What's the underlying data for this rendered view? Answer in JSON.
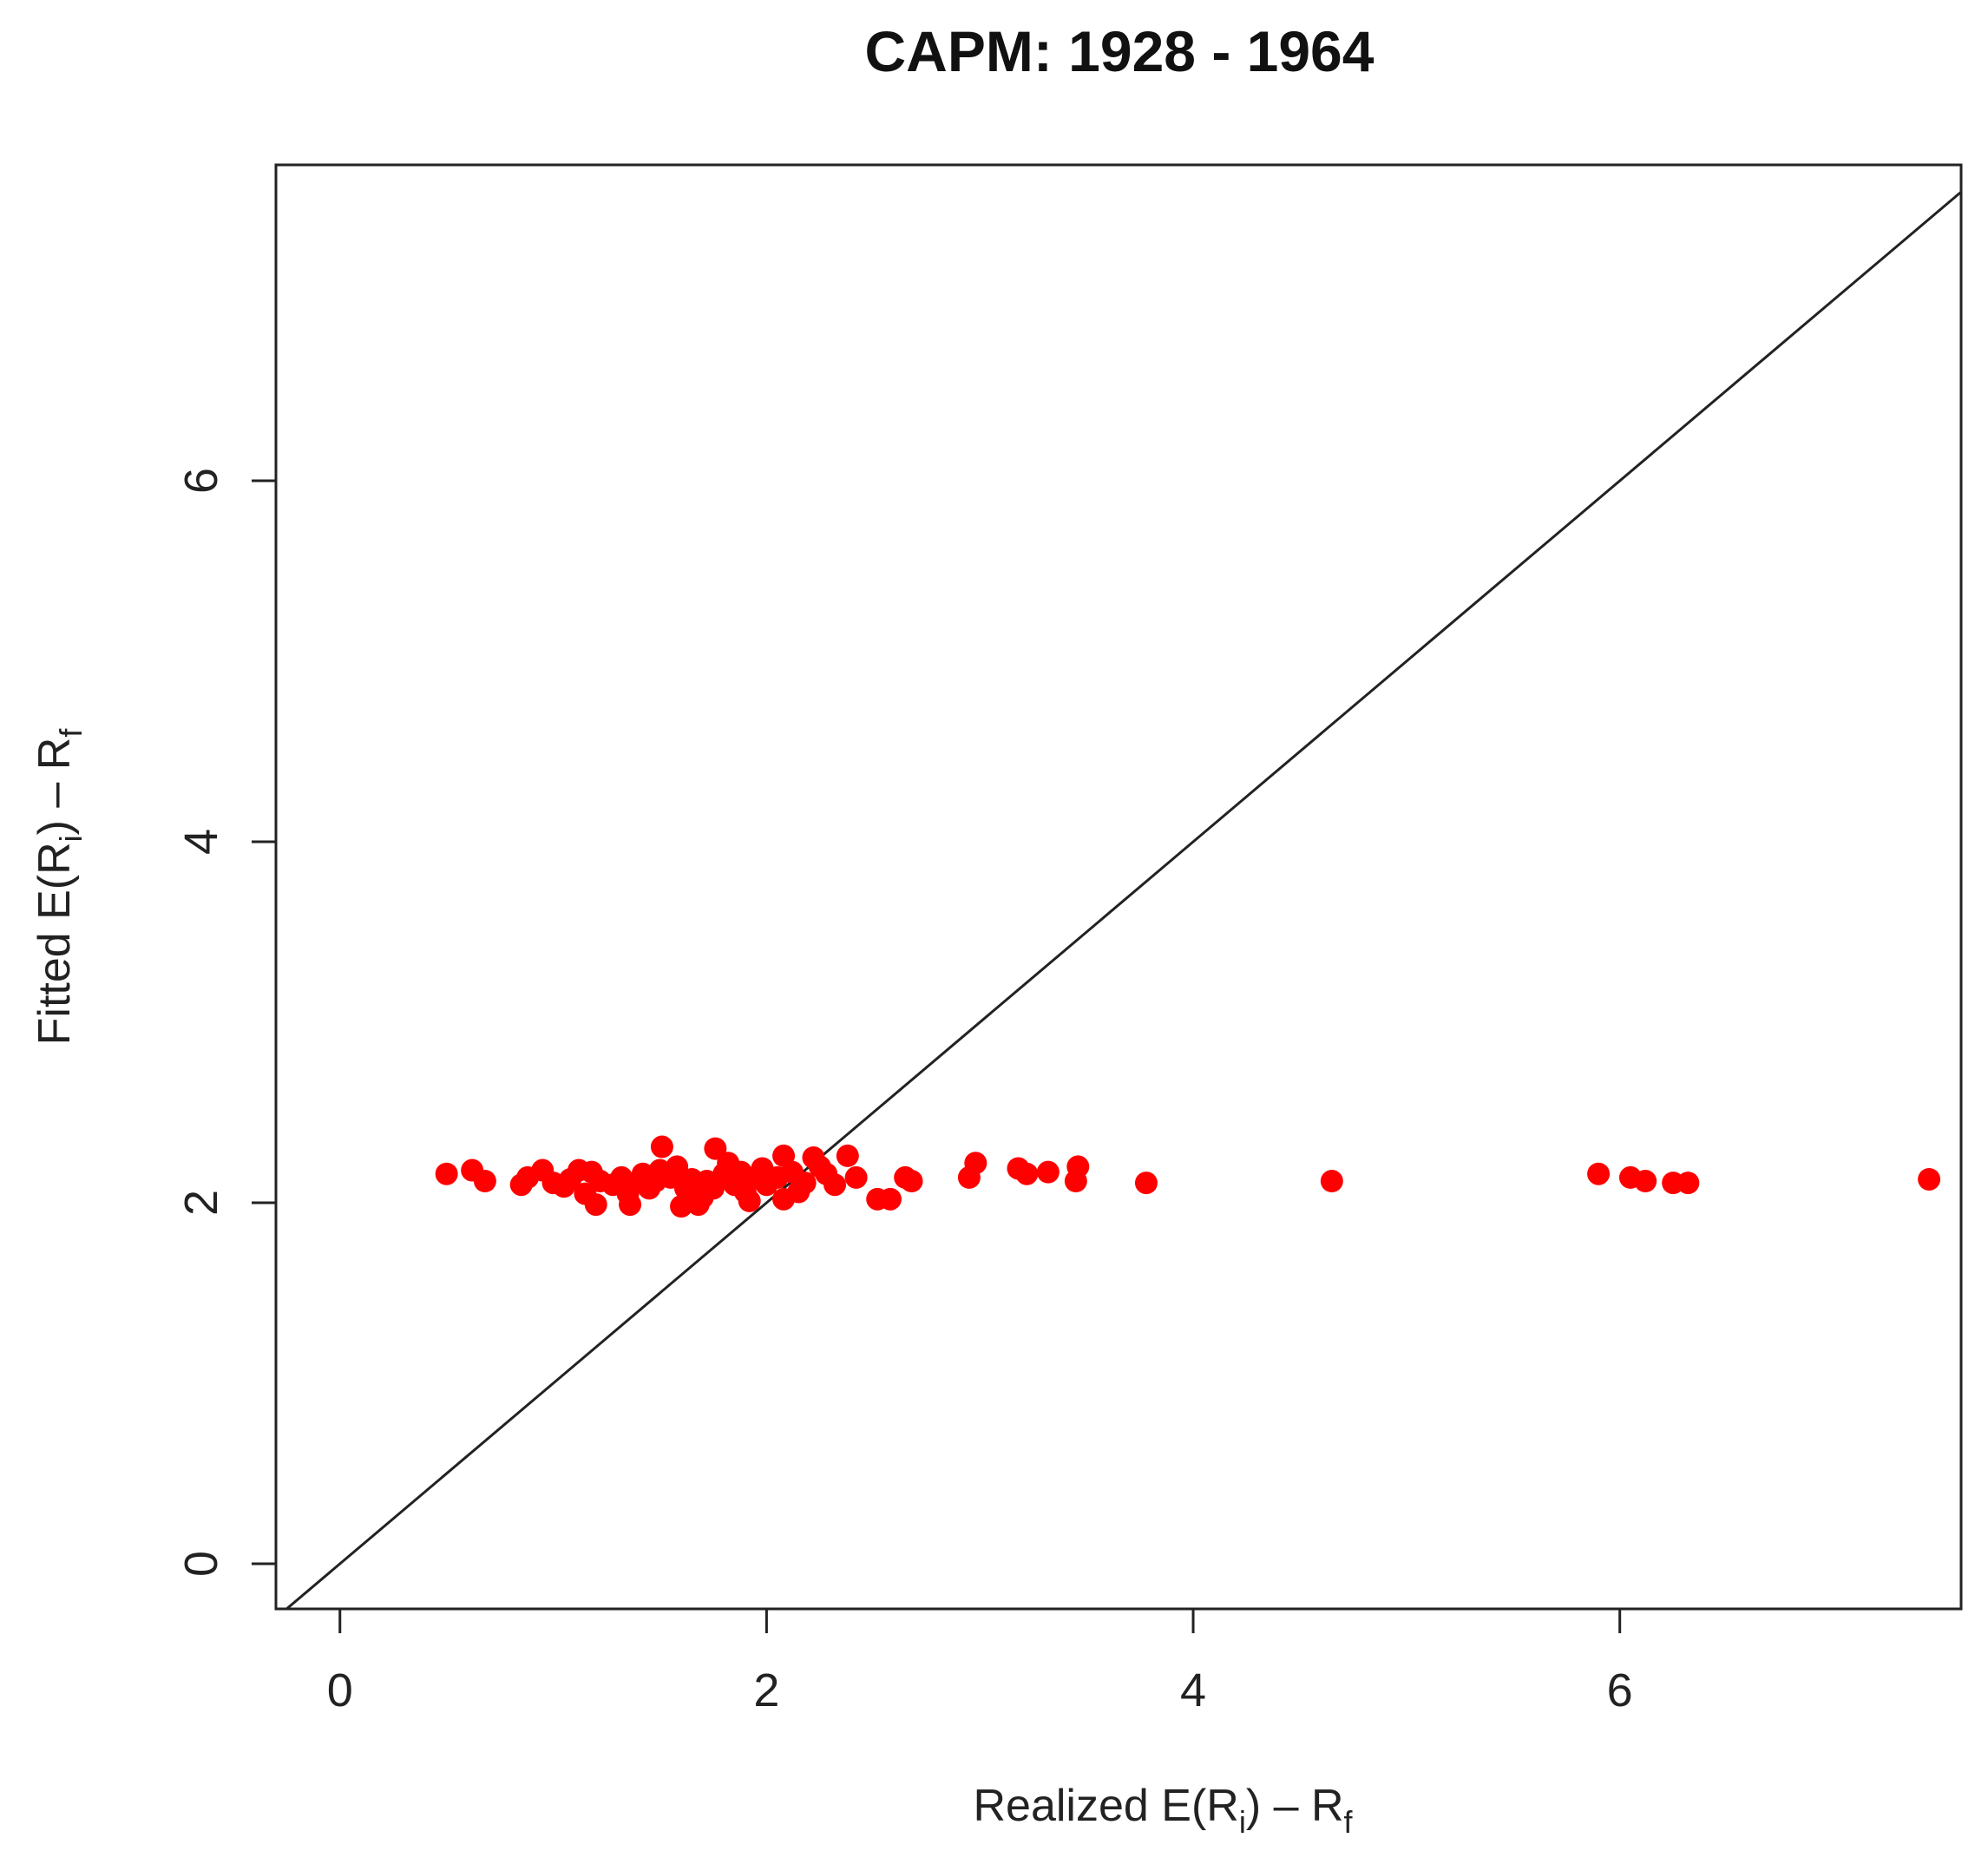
{
  "chart_data": {
    "type": "scatter",
    "title": "CAPM: 1928 - 1964",
    "xlabel": {
      "main": "Realized E(R",
      "sub": "i",
      "tail": ") – R",
      "sub2": "f"
    },
    "ylabel": {
      "main": "Fitted E(R",
      "sub": "i",
      "tail": ") – R",
      "sub2": "f"
    },
    "xlim": [
      -0.3,
      7.6
    ],
    "ylim": [
      -0.25,
      7.75
    ],
    "xticks": [
      "0",
      "2",
      "4",
      "6"
    ],
    "yticks": [
      "0",
      "2",
      "4",
      "6"
    ],
    "grid": false,
    "point_color": "#ff0000",
    "line_color": "#222222",
    "reference_line": {
      "slope": 1,
      "intercept": 0
    },
    "points": [
      [
        0.5,
        2.16
      ],
      [
        0.62,
        2.18
      ],
      [
        0.68,
        2.12
      ],
      [
        0.85,
        2.1
      ],
      [
        0.88,
        2.14
      ],
      [
        0.95,
        2.18
      ],
      [
        1.0,
        2.11
      ],
      [
        1.05,
        2.09
      ],
      [
        1.08,
        2.13
      ],
      [
        1.12,
        2.18
      ],
      [
        1.15,
        2.05
      ],
      [
        1.18,
        2.17
      ],
      [
        1.2,
        1.99
      ],
      [
        1.22,
        2.12
      ],
      [
        1.28,
        2.1
      ],
      [
        1.32,
        2.14
      ],
      [
        1.35,
        2.05
      ],
      [
        1.36,
        1.99
      ],
      [
        1.4,
        2.12
      ],
      [
        1.42,
        2.16
      ],
      [
        1.45,
        2.08
      ],
      [
        1.48,
        2.12
      ],
      [
        1.5,
        2.18
      ],
      [
        1.51,
        2.31
      ],
      [
        1.55,
        2.14
      ],
      [
        1.58,
        2.2
      ],
      [
        1.6,
        1.98
      ],
      [
        1.62,
        2.08
      ],
      [
        1.65,
        2.13
      ],
      [
        1.68,
        1.99
      ],
      [
        1.7,
        2.03
      ],
      [
        1.72,
        2.12
      ],
      [
        1.75,
        2.08
      ],
      [
        1.76,
        2.3
      ],
      [
        1.8,
        2.16
      ],
      [
        1.82,
        2.22
      ],
      [
        1.85,
        2.1
      ],
      [
        1.88,
        2.17
      ],
      [
        1.9,
        2.06
      ],
      [
        1.92,
        2.01
      ],
      [
        1.95,
        2.14
      ],
      [
        1.98,
        2.19
      ],
      [
        2.0,
        2.1
      ],
      [
        2.05,
        2.14
      ],
      [
        2.08,
        2.02
      ],
      [
        2.08,
        2.26
      ],
      [
        2.12,
        2.17
      ],
      [
        2.15,
        2.06
      ],
      [
        2.18,
        2.11
      ],
      [
        2.22,
        2.25
      ],
      [
        2.25,
        2.2
      ],
      [
        2.28,
        2.16
      ],
      [
        2.32,
        2.1
      ],
      [
        2.38,
        2.26
      ],
      [
        2.42,
        2.14
      ],
      [
        2.52,
        2.02
      ],
      [
        2.58,
        2.02
      ],
      [
        2.65,
        2.14
      ],
      [
        2.68,
        2.12
      ],
      [
        2.95,
        2.14
      ],
      [
        2.98,
        2.22
      ],
      [
        3.18,
        2.19
      ],
      [
        3.22,
        2.16
      ],
      [
        3.32,
        2.17
      ],
      [
        3.45,
        2.12
      ],
      [
        3.46,
        2.2
      ],
      [
        3.78,
        2.11
      ],
      [
        4.65,
        2.12
      ],
      [
        5.9,
        2.16
      ],
      [
        6.05,
        2.14
      ],
      [
        6.12,
        2.12
      ],
      [
        6.25,
        2.11
      ],
      [
        6.32,
        2.11
      ],
      [
        7.45,
        2.13
      ]
    ]
  }
}
